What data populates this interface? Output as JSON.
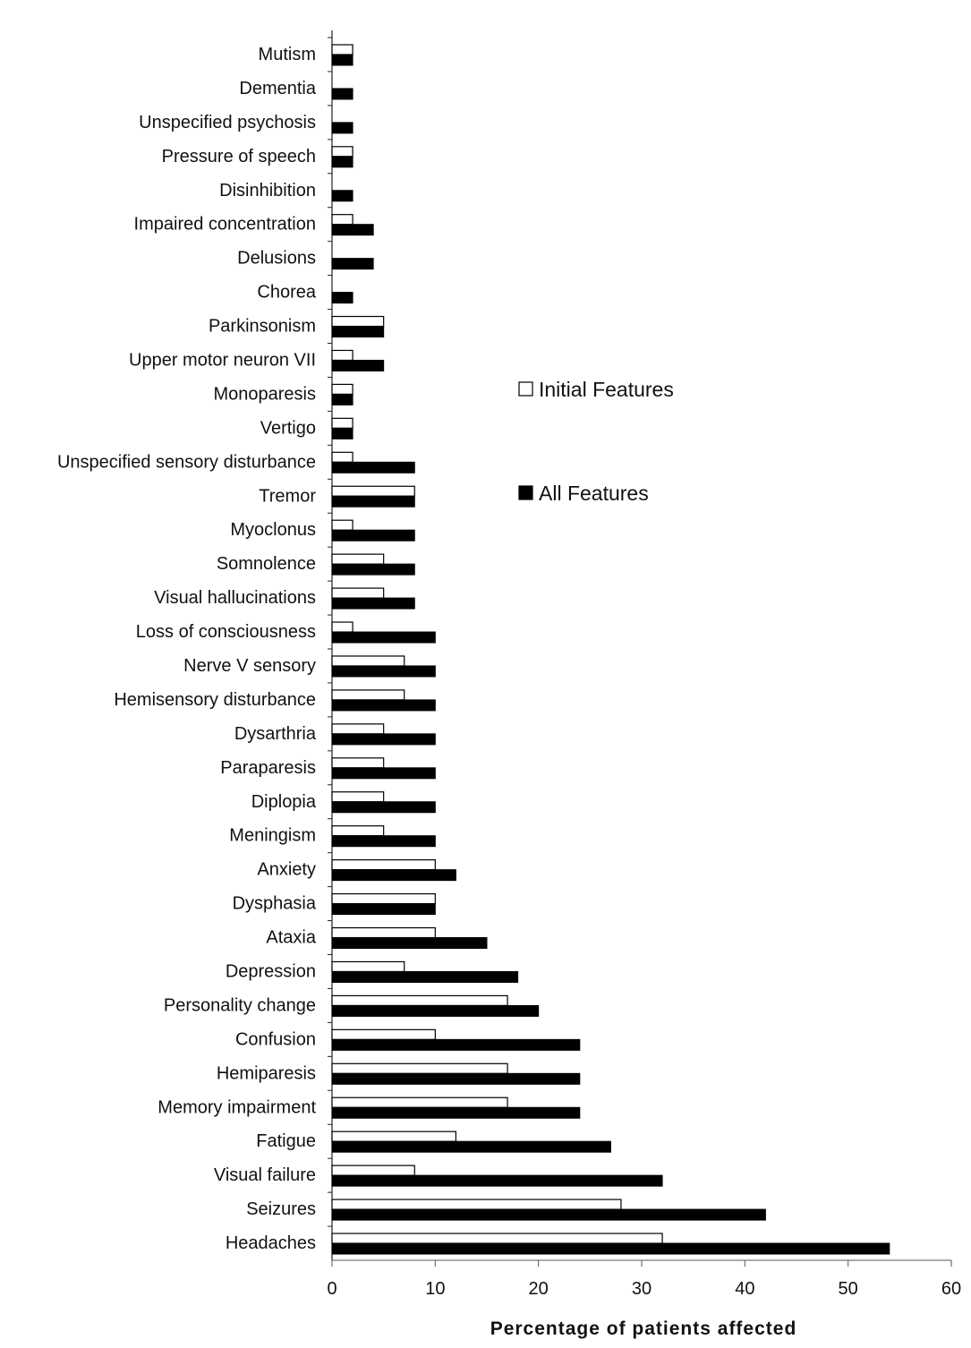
{
  "chart_data": {
    "type": "bar",
    "orientation": "horizontal",
    "title": "",
    "xlabel": "Percentage of patients affected",
    "ylabel": "",
    "xlim": [
      0,
      60
    ],
    "xticks": [
      0,
      10,
      20,
      30,
      40,
      50,
      60
    ],
    "grid": false,
    "legend_position": "right",
    "categories": [
      "Mutism",
      "Dementia",
      "Unspecified psychosis",
      "Pressure of speech",
      "Disinhibition",
      "Impaired concentration",
      "Delusions",
      "Chorea",
      "Parkinsonism",
      "Upper motor neuron VII",
      "Monoparesis",
      "Vertigo",
      "Unspecified sensory disturbance",
      "Tremor",
      "Myoclonus",
      "Somnolence",
      "Visual hallucinations",
      "Loss of consciousness",
      "Nerve V sensory",
      "Hemisensory disturbance",
      "Dysarthria",
      "Paraparesis",
      "Diplopia",
      "Meningism",
      "Anxiety",
      "Dysphasia",
      "Ataxia",
      "Depression",
      "Personality change",
      "Confusion",
      "Hemiparesis",
      "Memory impairment",
      "Fatigue",
      "Visual failure",
      "Seizures",
      "Headaches"
    ],
    "series": [
      {
        "name": "Initial Features",
        "color": "#ffffff",
        "values": [
          2,
          0,
          0,
          2,
          0,
          2,
          0,
          0,
          5,
          2,
          2,
          2,
          2,
          8,
          2,
          5,
          5,
          2,
          7,
          7,
          5,
          5,
          5,
          5,
          10,
          10,
          10,
          7,
          17,
          10,
          17,
          17,
          12,
          8,
          28,
          32
        ]
      },
      {
        "name": "All Features",
        "color": "#000000",
        "values": [
          2,
          2,
          2,
          2,
          2,
          4,
          4,
          2,
          5,
          5,
          2,
          2,
          8,
          8,
          8,
          8,
          8,
          10,
          10,
          10,
          10,
          10,
          10,
          10,
          12,
          10,
          15,
          18,
          20,
          24,
          24,
          24,
          27,
          32,
          42,
          54
        ]
      }
    ]
  }
}
